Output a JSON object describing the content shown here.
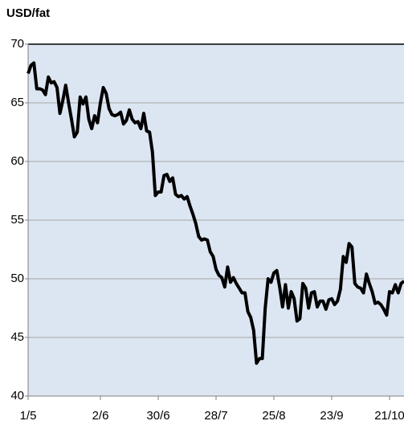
{
  "chart_data": {
    "type": "line",
    "title": "USD/fat",
    "categories": [
      "1/5",
      null,
      null,
      null,
      null,
      null,
      null,
      null,
      null,
      null,
      null,
      null,
      null,
      null,
      null,
      null,
      null,
      null,
      null,
      null,
      null,
      null,
      null,
      null,
      null,
      "2/6",
      null,
      null,
      null,
      null,
      null,
      null,
      null,
      null,
      null,
      null,
      null,
      null,
      null,
      null,
      null,
      null,
      null,
      null,
      null,
      "30/6",
      null,
      null,
      null,
      null,
      null,
      null,
      null,
      null,
      null,
      null,
      null,
      null,
      null,
      null,
      null,
      null,
      null,
      null,
      null,
      "28/7",
      null,
      null,
      null,
      null,
      null,
      null,
      null,
      null,
      null,
      null,
      null,
      null,
      null,
      null,
      null,
      null,
      null,
      null,
      null,
      "25/8",
      null,
      null,
      null,
      null,
      null,
      null,
      null,
      null,
      null,
      null,
      null,
      null,
      null,
      null,
      null,
      null,
      null,
      null,
      null,
      "23/9",
      null,
      null,
      null,
      null,
      null,
      null,
      null,
      null,
      null,
      null,
      null,
      null,
      null,
      null,
      null,
      null,
      null,
      null,
      null,
      "21/10",
      null,
      null,
      null,
      null,
      null
    ],
    "series": [
      {
        "name": "USD/fat",
        "color": "#000000",
        "values": [
          67.5,
          68.2,
          68.4,
          66.2,
          66.2,
          66.1,
          65.7,
          67.2,
          66.7,
          66.8,
          66.3,
          64.1,
          65.2,
          66.5,
          65.0,
          63.6,
          62.1,
          62.5,
          65.5,
          64.9,
          65.5,
          63.6,
          62.8,
          63.9,
          63.3,
          65.0,
          66.3,
          65.8,
          64.5,
          64.0,
          63.9,
          64.0,
          64.2,
          63.2,
          63.5,
          64.4,
          63.6,
          63.3,
          63.4,
          62.8,
          64.1,
          62.6,
          62.5,
          60.8,
          57.1,
          57.4,
          57.4,
          58.8,
          58.9,
          58.3,
          58.6,
          57.2,
          57.0,
          57.1,
          56.8,
          57.0,
          56.2,
          55.5,
          54.7,
          53.6,
          53.3,
          53.4,
          53.3,
          52.3,
          51.9,
          50.8,
          50.3,
          50.1,
          49.3,
          51.0,
          49.7,
          50.1,
          49.6,
          49.2,
          48.8,
          48.8,
          47.2,
          46.7,
          45.6,
          42.8,
          43.2,
          43.2,
          47.5,
          50.0,
          49.7,
          50.5,
          50.7,
          49.3,
          47.6,
          49.5,
          47.5,
          48.9,
          48.3,
          46.4,
          46.6,
          49.6,
          49.2,
          47.5,
          48.8,
          48.9,
          47.6,
          48.1,
          48.1,
          47.4,
          48.2,
          48.3,
          47.8,
          48.1,
          49.1,
          51.9,
          51.4,
          53.0,
          52.7,
          49.6,
          49.3,
          49.2,
          48.8,
          50.4,
          49.6,
          48.9,
          47.9,
          48.0,
          47.8,
          47.4,
          46.9,
          48.9,
          48.8,
          49.5,
          48.8,
          49.6,
          49.8
        ]
      }
    ],
    "ylim": [
      40,
      70
    ],
    "yticks": [
      40,
      45,
      50,
      55,
      60,
      65,
      70
    ],
    "grid": true,
    "background": "#dce6f2"
  }
}
